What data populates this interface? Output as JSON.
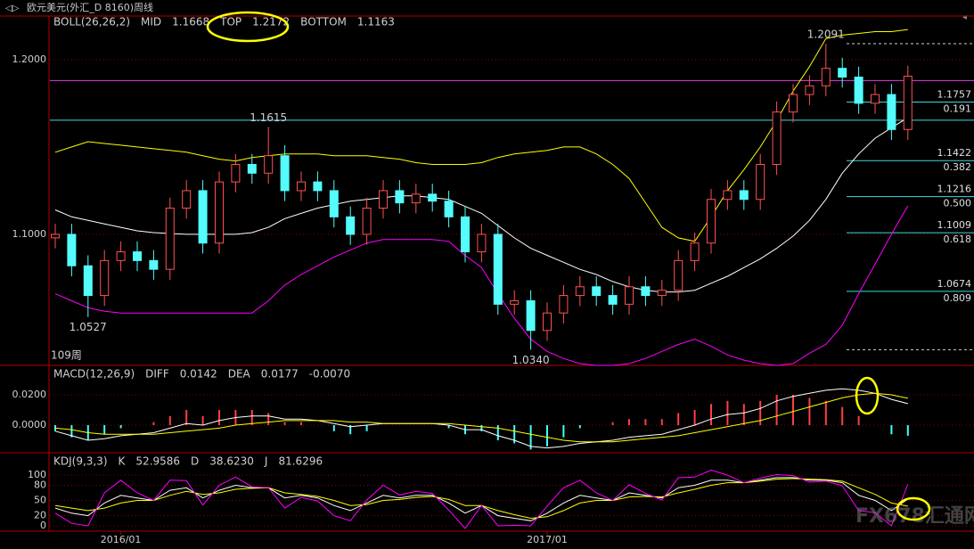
{
  "window_title": "欧元美元(外汇_D 8160)周线",
  "watermark": "FX678汇通网",
  "chart_data": [
    {
      "type": "candlestick",
      "title": "BOLL(26,26,2)",
      "period_label": "109周",
      "categories": [
        null,
        null,
        null,
        null,
        "2016/01",
        null,
        null,
        null,
        null,
        null,
        null,
        null,
        null,
        null,
        null,
        null,
        null,
        null,
        null,
        null,
        null,
        null,
        null,
        null,
        null,
        null,
        null,
        null,
        null,
        null,
        "2017/01",
        null,
        null,
        null,
        null,
        null,
        null,
        null,
        null,
        null,
        null,
        null,
        null,
        null,
        null,
        null,
        null,
        null,
        null,
        null,
        null,
        null,
        null
      ],
      "open": [
        1.098,
        1.1,
        1.082,
        1.065,
        1.085,
        1.09,
        1.085,
        1.08,
        1.115,
        1.125,
        1.095,
        1.13,
        1.14,
        1.135,
        1.145,
        1.125,
        1.13,
        1.125,
        1.11,
        1.1,
        1.115,
        1.125,
        1.118,
        1.123,
        1.119,
        1.11,
        1.09,
        1.1,
        1.06,
        1.062,
        1.045,
        1.055,
        1.065,
        1.07,
        1.065,
        1.06,
        1.07,
        1.065,
        1.068,
        1.085,
        1.095,
        1.12,
        1.125,
        1.12,
        1.14,
        1.17,
        1.18,
        1.185,
        1.195,
        1.19,
        1.175,
        1.18,
        1.16
      ],
      "high": [
        1.106,
        1.106,
        1.088,
        1.091,
        1.096,
        1.096,
        1.091,
        1.121,
        1.131,
        1.131,
        1.136,
        1.146,
        1.146,
        1.1615,
        1.151,
        1.136,
        1.136,
        1.131,
        1.116,
        1.121,
        1.131,
        1.131,
        1.129,
        1.129,
        1.125,
        1.116,
        1.106,
        1.106,
        1.068,
        1.068,
        1.061,
        1.071,
        1.076,
        1.076,
        1.071,
        1.076,
        1.076,
        1.074,
        1.091,
        1.101,
        1.126,
        1.131,
        1.131,
        1.146,
        1.176,
        1.186,
        1.191,
        1.2091,
        1.201,
        1.196,
        1.186,
        1.186,
        1.1965
      ],
      "low": [
        1.092,
        1.076,
        1.0527,
        1.059,
        1.079,
        1.079,
        1.074,
        1.074,
        1.109,
        1.089,
        1.089,
        1.124,
        1.129,
        1.129,
        1.119,
        1.119,
        1.119,
        1.104,
        1.094,
        1.094,
        1.109,
        1.112,
        1.112,
        1.113,
        1.104,
        1.084,
        1.084,
        1.054,
        1.054,
        1.034,
        1.039,
        1.049,
        1.059,
        1.059,
        1.054,
        1.054,
        1.059,
        1.059,
        1.062,
        1.079,
        1.089,
        1.114,
        1.114,
        1.114,
        1.134,
        1.164,
        1.174,
        1.179,
        1.184,
        1.169,
        1.169,
        1.154,
        1.154
      ],
      "close": [
        1.1,
        1.082,
        1.065,
        1.085,
        1.09,
        1.085,
        1.08,
        1.115,
        1.125,
        1.095,
        1.13,
        1.14,
        1.135,
        1.145,
        1.125,
        1.13,
        1.125,
        1.11,
        1.1,
        1.115,
        1.125,
        1.118,
        1.123,
        1.119,
        1.11,
        1.09,
        1.1,
        1.06,
        1.062,
        1.045,
        1.055,
        1.065,
        1.07,
        1.065,
        1.06,
        1.07,
        1.065,
        1.068,
        1.085,
        1.095,
        1.12,
        1.125,
        1.12,
        1.14,
        1.17,
        1.18,
        1.185,
        1.195,
        1.19,
        1.175,
        1.18,
        1.16,
        1.1905
      ],
      "up_color": "#ff5050",
      "down_color": "#54fcfc",
      "series": [
        {
          "name": "MID",
          "color": "#ffffff",
          "readout": "1.1668",
          "values": [
            1.114,
            1.11,
            1.108,
            1.106,
            1.104,
            1.102,
            1.101,
            1.1005,
            1.1,
            1.1,
            1.1,
            1.1,
            1.101,
            1.104,
            1.109,
            1.112,
            1.115,
            1.117,
            1.119,
            1.12,
            1.121,
            1.122,
            1.122,
            1.121,
            1.12,
            1.116,
            1.112,
            1.105,
            1.098,
            1.092,
            1.088,
            1.084,
            1.08,
            1.077,
            1.073,
            1.07,
            1.068,
            1.067,
            1.067,
            1.068,
            1.072,
            1.076,
            1.081,
            1.086,
            1.092,
            1.099,
            1.108,
            1.12,
            1.135,
            1.146,
            1.155,
            1.161,
            1.1668
          ]
        },
        {
          "name": "TOP",
          "color": "#ffff00",
          "readout": "1.2172",
          "values": [
            1.147,
            1.15,
            1.153,
            1.152,
            1.151,
            1.15,
            1.149,
            1.148,
            1.147,
            1.145,
            1.143,
            1.142,
            1.144,
            1.145,
            1.146,
            1.146,
            1.146,
            1.145,
            1.145,
            1.145,
            1.144,
            1.143,
            1.141,
            1.14,
            1.14,
            1.14,
            1.141,
            1.144,
            1.146,
            1.147,
            1.148,
            1.15,
            1.15,
            1.146,
            1.14,
            1.132,
            1.118,
            1.104,
            1.098,
            1.096,
            1.11,
            1.125,
            1.137,
            1.15,
            1.165,
            1.182,
            1.196,
            1.212,
            1.214,
            1.215,
            1.216,
            1.216,
            1.2172
          ]
        },
        {
          "name": "BOTTOM",
          "color": "#ff00ff",
          "readout": "1.1163",
          "values": [
            1.066,
            1.062,
            1.058,
            1.056,
            1.055,
            1.055,
            1.055,
            1.055,
            1.055,
            1.055,
            1.055,
            1.055,
            1.055,
            1.062,
            1.071,
            1.077,
            1.082,
            1.087,
            1.091,
            1.095,
            1.097,
            1.097,
            1.097,
            1.097,
            1.096,
            1.088,
            1.081,
            1.066,
            1.052,
            1.04,
            1.033,
            1.029,
            1.026,
            1.025,
            1.025,
            1.026,
            1.029,
            1.033,
            1.037,
            1.04,
            1.036,
            1.031,
            1.028,
            1.026,
            1.025,
            1.026,
            1.032,
            1.037,
            1.048,
            1.066,
            1.083,
            1.1,
            1.1163
          ]
        }
      ],
      "ylim": [
        1.025,
        1.229
      ],
      "yticks": [
        {
          "value": 1.2,
          "label": "1.2000"
        },
        {
          "value": 1.1,
          "label": "1.1000"
        }
      ],
      "grid": true,
      "levels": [
        {
          "value": 1.188,
          "color": "#e040e0"
        },
        {
          "value": 1.1653,
          "color": "#40d8d8"
        }
      ],
      "dashed_levels": [
        1.2091,
        1.034
      ],
      "fib_levels": [
        {
          "value": 1.1757,
          "ratio": "0.191"
        },
        {
          "value": 1.1422,
          "ratio": "0.382"
        },
        {
          "value": 1.1216,
          "ratio": "0.500"
        },
        {
          "value": 1.1009,
          "ratio": "0.618"
        },
        {
          "value": 1.0674,
          "ratio": "0.809"
        }
      ],
      "annotations": [
        {
          "index": 13,
          "value": 1.1615,
          "label": "1.1615",
          "position": "above",
          "color": "#ff6060"
        },
        {
          "index": 2,
          "value": 1.0527,
          "label": "1.0527",
          "position": "below",
          "color": "#54fcfc"
        },
        {
          "index": 29,
          "value": 1.034,
          "label": "1.0340",
          "position": "below",
          "color": "#54fcfc"
        },
        {
          "index": 47,
          "value": 1.2091,
          "label": "1.2091",
          "position": "above",
          "color": "#ff6060"
        }
      ]
    },
    {
      "type": "macd",
      "title": "MACD(12,26,9)",
      "series": [
        {
          "name": "DIFF",
          "color": "#ffffff",
          "readout": "0.0142",
          "values": [
            -0.004,
            -0.007,
            -0.01,
            -0.009,
            -0.007,
            -0.006,
            -0.005,
            -0.002,
            0.001,
            0.0,
            0.003,
            0.005,
            0.006,
            0.006,
            0.004,
            0.004,
            0.003,
            0.001,
            -0.001,
            0.0,
            0.001,
            0.001,
            0.001,
            0.001,
            0.0,
            -0.003,
            -0.003,
            -0.007,
            -0.01,
            -0.014,
            -0.015,
            -0.014,
            -0.012,
            -0.011,
            -0.01,
            -0.008,
            -0.007,
            -0.006,
            -0.003,
            0.0,
            0.004,
            0.007,
            0.008,
            0.011,
            0.016,
            0.019,
            0.021,
            0.023,
            0.024,
            0.023,
            0.021,
            0.017,
            0.0142
          ]
        },
        {
          "name": "DEA",
          "color": "#ffff00",
          "readout": "0.0177",
          "values": [
            -0.002,
            -0.003,
            -0.005,
            -0.006,
            -0.006,
            -0.006,
            -0.006,
            -0.005,
            -0.004,
            -0.003,
            -0.002,
            0.0,
            0.001,
            0.002,
            0.003,
            0.003,
            0.003,
            0.003,
            0.002,
            0.002,
            0.001,
            0.001,
            0.001,
            0.001,
            0.001,
            0.0,
            -0.001,
            -0.002,
            -0.004,
            -0.006,
            -0.008,
            -0.01,
            -0.011,
            -0.011,
            -0.011,
            -0.01,
            -0.009,
            -0.008,
            -0.007,
            -0.005,
            -0.003,
            -0.001,
            0.001,
            0.003,
            0.006,
            0.009,
            0.012,
            0.015,
            0.018,
            0.02,
            0.021,
            0.02,
            0.0177
          ]
        }
      ],
      "histogram": {
        "readout": "-0.0070",
        "up_color": "#ff4040",
        "down_color": "#40ffff",
        "values": [
          -0.004,
          -0.008,
          -0.01,
          -0.006,
          -0.002,
          0,
          0.002,
          0.006,
          0.01,
          0.006,
          0.01,
          0.01,
          0.01,
          0.008,
          0.002,
          0.002,
          0,
          -0.004,
          -0.006,
          -0.004,
          0,
          0,
          0,
          0,
          -0.002,
          -0.006,
          -0.004,
          -0.01,
          -0.012,
          -0.016,
          -0.014,
          -0.008,
          -0.002,
          0,
          0.002,
          0.004,
          0.004,
          0.004,
          0.008,
          0.01,
          0.014,
          0.016,
          0.014,
          0.016,
          0.02,
          0.02,
          0.018,
          0.016,
          0.012,
          0.006,
          0,
          -0.006,
          -0.007
        ]
      },
      "ylim": [
        -0.0182,
        0.0394
      ],
      "yticks": [
        {
          "value": 0.02,
          "label": "0.0200"
        },
        {
          "value": 0,
          "label": "0.0000"
        }
      ],
      "grid": true
    },
    {
      "type": "kdj",
      "title": "KDJ(9,3,3)",
      "series": [
        {
          "name": "K",
          "color": "#ffffff",
          "readout": "52.9586",
          "values": [
            35,
            25,
            20,
            45,
            60,
            55,
            50,
            70,
            75,
            55,
            70,
            80,
            75,
            75,
            55,
            60,
            55,
            40,
            30,
            45,
            60,
            55,
            60,
            60,
            45,
            25,
            40,
            20,
            15,
            10,
            25,
            45,
            60,
            55,
            50,
            65,
            60,
            55,
            75,
            80,
            90,
            90,
            85,
            90,
            95,
            95,
            90,
            90,
            85,
            60,
            50,
            30,
            52.9586
          ]
        },
        {
          "name": "D",
          "color": "#ffff00",
          "readout": "38.6230",
          "values": [
            40,
            35,
            30,
            35,
            45,
            50,
            50,
            60,
            68,
            62,
            65,
            72,
            74,
            75,
            65,
            62,
            58,
            50,
            40,
            42,
            50,
            52,
            56,
            58,
            52,
            40,
            40,
            30,
            22,
            15,
            18,
            30,
            45,
            50,
            50,
            57,
            58,
            57,
            65,
            72,
            80,
            85,
            85,
            88,
            92,
            93,
            92,
            91,
            88,
            75,
            62,
            45,
            38.623
          ]
        },
        {
          "name": "J",
          "color": "#ff00ff",
          "readout": "81.6296",
          "values": [
            25,
            5,
            0,
            65,
            90,
            65,
            50,
            90,
            89,
            41,
            80,
            96,
            77,
            75,
            35,
            56,
            49,
            20,
            10,
            51,
            80,
            61,
            68,
            64,
            31,
            -5,
            40,
            0,
            1,
            0,
            39,
            75,
            90,
            65,
            50,
            81,
            64,
            51,
            95,
            96,
            110,
            100,
            85,
            94,
            101,
            99,
            86,
            88,
            79,
            30,
            26,
            0,
            81.6296
          ]
        }
      ],
      "ylim": [
        -10.5,
        144
      ],
      "yticks": [
        0,
        20,
        50,
        80,
        100
      ],
      "grid": true
    }
  ]
}
